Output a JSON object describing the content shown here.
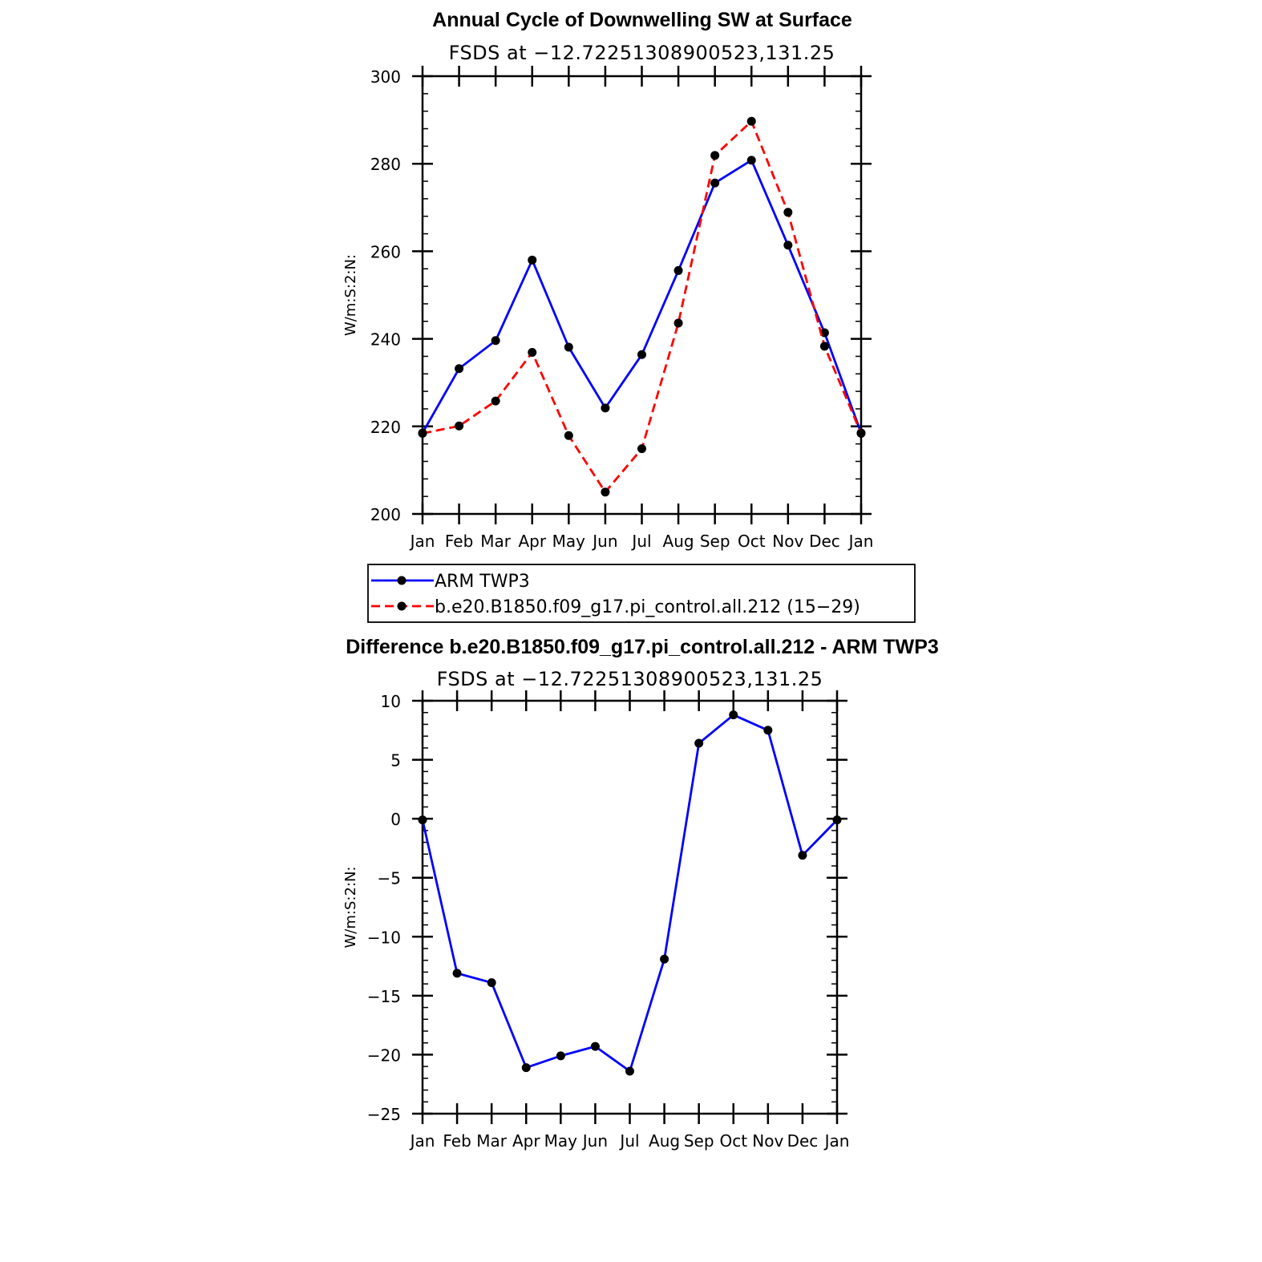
{
  "chart_data": [
    {
      "type": "line",
      "title": "Annual Cycle of Downwelling SW at Surface",
      "subtitle": "FSDS at −12.72251308900523,131.25",
      "xlabel": "",
      "ylabel": "W/m:S:2:N:",
      "categories": [
        "Jan",
        "Feb",
        "Mar",
        "Apr",
        "May",
        "Jun",
        "Jul",
        "Aug",
        "Sep",
        "Oct",
        "Nov",
        "Dec",
        "Jan"
      ],
      "ylim": [
        200,
        300
      ],
      "yticks": [
        200,
        220,
        240,
        260,
        280,
        300
      ],
      "ytick_labels": [
        "200",
        "220",
        "240",
        "260",
        "280",
        "300"
      ],
      "series": [
        {
          "name": "ARM TWP3",
          "color": "#0000ff",
          "dash": "solid",
          "values": [
            218.5,
            233.2,
            239.6,
            258.0,
            238.1,
            224.2,
            236.4,
            255.6,
            275.6,
            280.8,
            261.4,
            241.4,
            218.5
          ]
        },
        {
          "name": "b.e20.B1850.f09_g17.pi_control.all.212 (15−29)",
          "color": "#ff0000",
          "dash": "dashed",
          "values": [
            218.4,
            220.1,
            225.8,
            236.9,
            217.9,
            205.0,
            214.9,
            243.6,
            281.9,
            289.7,
            268.9,
            238.3,
            218.4
          ]
        }
      ],
      "legend": "bottom"
    },
    {
      "type": "line",
      "title": "Difference b.e20.B1850.f09_g17.pi_control.all.212 - ARM TWP3",
      "subtitle": "FSDS at −12.72251308900523,131.25",
      "xlabel": "",
      "ylabel": "W/m:S:2:N:",
      "categories": [
        "Jan",
        "Feb",
        "Mar",
        "Apr",
        "May",
        "Jun",
        "Jul",
        "Aug",
        "Sep",
        "Oct",
        "Nov",
        "Dec",
        "Jan"
      ],
      "ylim": [
        -25,
        10
      ],
      "yticks": [
        -25,
        -20,
        -15,
        -10,
        -5,
        0,
        5,
        10
      ],
      "ytick_labels": [
        "−25",
        "−20",
        "−15",
        "−10",
        "−5",
        "0",
        "5",
        "10"
      ],
      "series": [
        {
          "name": "Difference",
          "color": "#0000ff",
          "dash": "solid",
          "values": [
            -0.1,
            -13.1,
            -13.9,
            -21.1,
            -20.1,
            -19.3,
            -21.4,
            -11.9,
            6.4,
            8.8,
            7.5,
            -3.1,
            -0.1
          ]
        }
      ]
    }
  ]
}
